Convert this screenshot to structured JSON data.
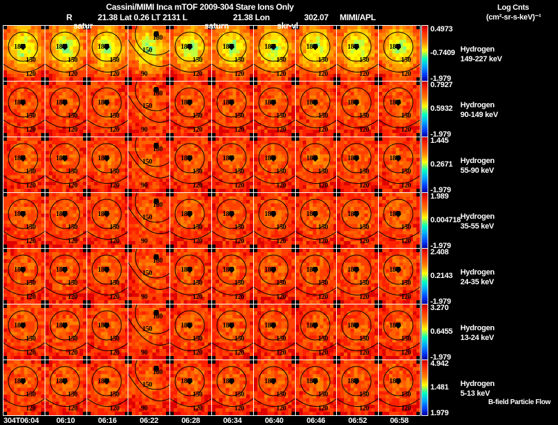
{
  "header": {
    "title": "Cassini/MIMI Inca mTOF  2009-304   Stare    Ions Only",
    "r_label": "R",
    "position_line": "21.38 Lat 0.26 LT 2131 L",
    "lon_line": "21.38 Lon",
    "lon_value": "302.07",
    "credit": "MIMI/APL",
    "units_title": "Log Cnts",
    "units": "(cm²-sr-s-keV)⁻¹"
  },
  "overlays": {
    "saturn_a": "satur",
    "saturn_b": "saturn",
    "sky_vel": "skr-vl"
  },
  "footer": {
    "legend": "B-field Particle Flow"
  },
  "chart_data": {
    "type": "heatmap",
    "title": "Cassini/MIMI Inca mTOF  2009-304   Stare    Ions Only",
    "times": [
      "304T06:04",
      "06:10",
      "06:16",
      "06:22",
      "06:28",
      "06:34",
      "06:40",
      "06:46",
      "06:52",
      "06:58"
    ],
    "contour_labels": [
      "180",
      "150",
      "120"
    ],
    "contour_labels_alt": [
      "180",
      "150",
      "90"
    ],
    "rows": [
      {
        "species": "Hydrogen",
        "energy": "149-227 keV",
        "max": "0.4973",
        "mid": "-0.7409",
        "min": "-1.979"
      },
      {
        "species": "Hydrogen",
        "energy": "90-149 keV",
        "max": "0.7927",
        "mid": "0.5932",
        "min": "-1.979"
      },
      {
        "species": "Hydrogen",
        "energy": "55-90 keV",
        "max": "1.445",
        "mid": "0.2671",
        "min": "-1.979"
      },
      {
        "species": "Hydrogen",
        "energy": "35-55 keV",
        "max": "1.989",
        "mid": "0.004718",
        "min": "-1.979"
      },
      {
        "species": "Hydrogen",
        "energy": "24-35 keV",
        "max": "2.408",
        "mid": "0.2143",
        "min": "-1.979"
      },
      {
        "species": "Hydrogen",
        "energy": "13-24 keV",
        "max": "3.270",
        "mid": "0.6455",
        "min": "-1.979"
      },
      {
        "species": "Hydrogen",
        "energy": "5-13 keV",
        "max": "4.942",
        "mid": "1.481",
        "min": "1.979"
      }
    ],
    "colorbar": [
      "#0000a0",
      "#0040ff",
      "#00a0ff",
      "#00ffc0",
      "#ffff00",
      "#ff8000",
      "#ff2000",
      "#c00000"
    ]
  }
}
